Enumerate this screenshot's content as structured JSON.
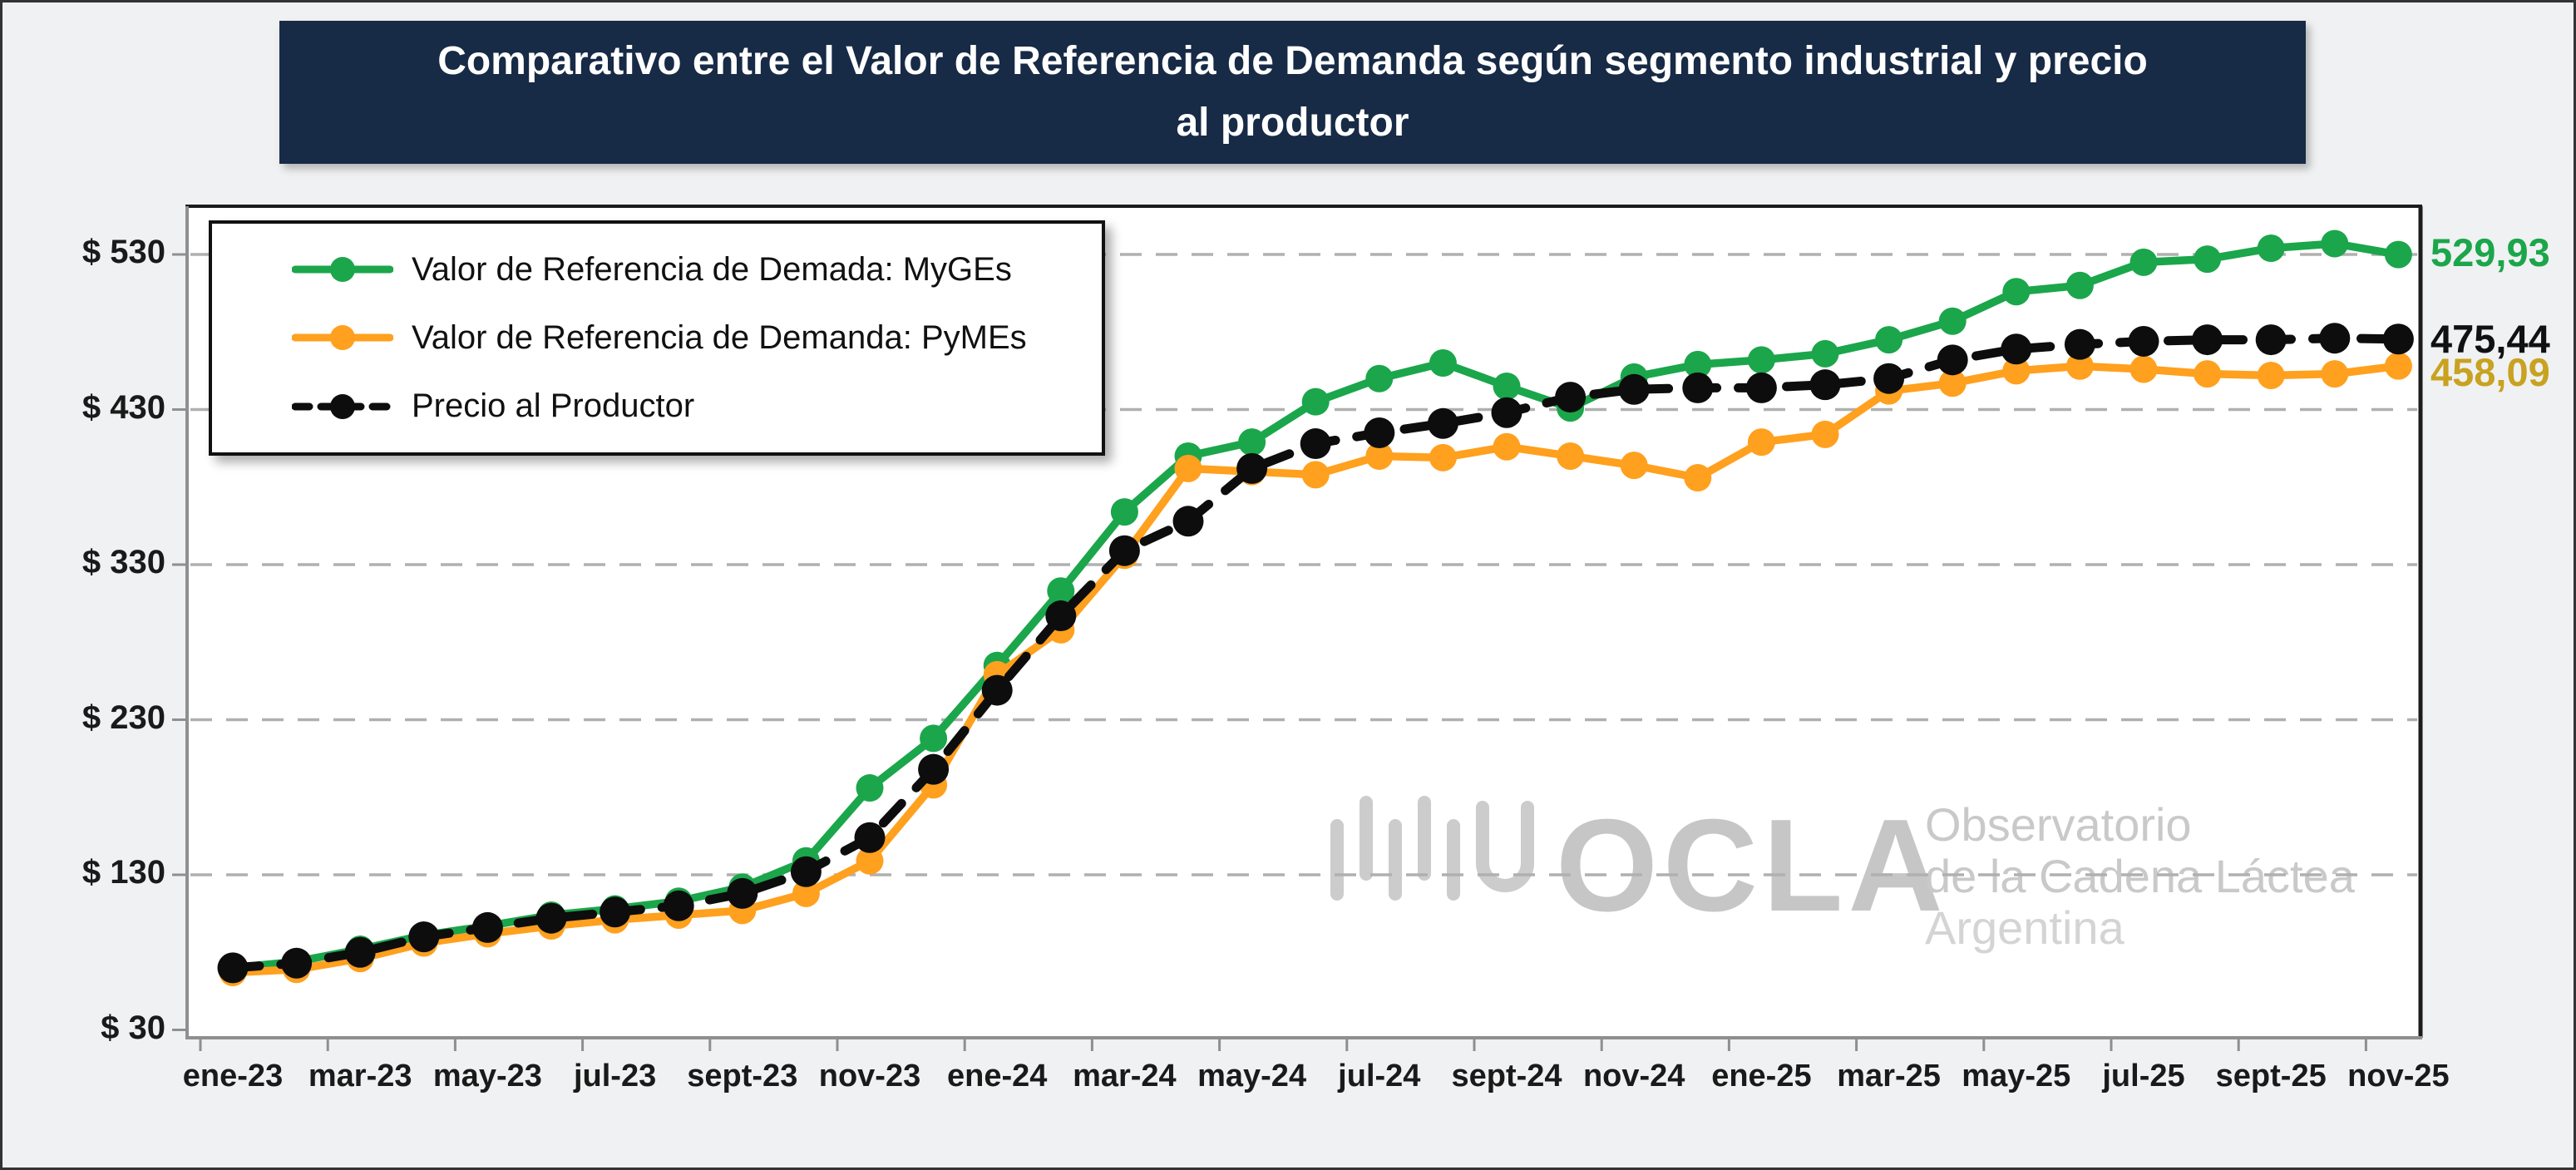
{
  "title": {
    "line1": "Comparativo entre el Valor de Referencia de Demanda según segmento industrial y precio",
    "line2": "al productor"
  },
  "watermark": {
    "brand": "OCLA",
    "lines": [
      "Observatorio",
      "de la Cadena Láctea",
      "Argentina"
    ]
  },
  "chart_data": {
    "type": "line",
    "x": [
      "ene-23",
      "feb-23",
      "mar-23",
      "abr-23",
      "may-23",
      "jun-23",
      "jul-23",
      "ago-23",
      "sept-23",
      "oct-23",
      "nov-23",
      "dic-23",
      "ene-24",
      "feb-24",
      "mar-24",
      "abr-24",
      "may-24",
      "jun-24",
      "jul-24",
      "ago-24",
      "sept-24",
      "oct-24",
      "nov-24",
      "dic-24",
      "ene-25",
      "feb-25",
      "mar-25",
      "abr-25",
      "may-25",
      "jun-25",
      "jul-25",
      "ago-25",
      "sept-25",
      "oct-25",
      "nov-25"
    ],
    "x_tick_labels": [
      "ene-23",
      "mar-23",
      "may-23",
      "jul-23",
      "sept-23",
      "nov-23",
      "ene-24",
      "mar-24",
      "may-24",
      "jul-24",
      "sept-24",
      "nov-24",
      "ene-25",
      "mar-25",
      "may-25",
      "jul-25",
      "sept-25",
      "nov-25"
    ],
    "ylim": [
      30,
      530
    ],
    "y_ticks": [
      30,
      130,
      230,
      330,
      430,
      530
    ],
    "y_tick_labels": [
      "$ 30",
      "$ 130",
      "$ 230",
      "$ 330",
      "$ 430",
      "$ 530"
    ],
    "grid": "horizontal-dashed",
    "legend_position": "top-left-inside",
    "series": [
      {
        "name": "Valor de Referencia de Demada: MyGEs",
        "color": "#1BA64B",
        "dash": "solid",
        "values": [
          70,
          74,
          82,
          91,
          97,
          104,
          108,
          113,
          122,
          139,
          186,
          218,
          265,
          313,
          364,
          400,
          409,
          435,
          450,
          460,
          445,
          431,
          451,
          459,
          462,
          466,
          475,
          487,
          506,
          510,
          525,
          527,
          534,
          537,
          529.93
        ]
      },
      {
        "name": "Valor de Referencia de Demanda: PyMEs",
        "color": "#FFA01E",
        "dash": "solid",
        "values": [
          67,
          69,
          76,
          86,
          92,
          97,
          101,
          104,
          107,
          118,
          139,
          188,
          259,
          288,
          336,
          392,
          390,
          388,
          400,
          399,
          406,
          400,
          394,
          386,
          409,
          414,
          442,
          447,
          455,
          458,
          456,
          453,
          452,
          453,
          458.09
        ]
      },
      {
        "name": "Precio al Productor",
        "color": "#0d0d0d",
        "dash": "dashed",
        "values": [
          70,
          73,
          80,
          90,
          96,
          102,
          106,
          110,
          118,
          132,
          154,
          198,
          249,
          297,
          339,
          358,
          392,
          408,
          415,
          421,
          428,
          438,
          443,
          444,
          444,
          446,
          450,
          462,
          469,
          472,
          474,
          475,
          475,
          476,
          475.44
        ]
      }
    ],
    "end_labels": [
      {
        "text": "529,93",
        "color": "#1BA64B",
        "series": "Valor de Referencia de Demada: MyGEs"
      },
      {
        "text": "475,44",
        "color": "#111111",
        "series": "Precio al Productor"
      },
      {
        "text": "458,09",
        "color": "#C8A220",
        "series": "Valor de Referencia de Demanda: PyMEs"
      }
    ]
  }
}
